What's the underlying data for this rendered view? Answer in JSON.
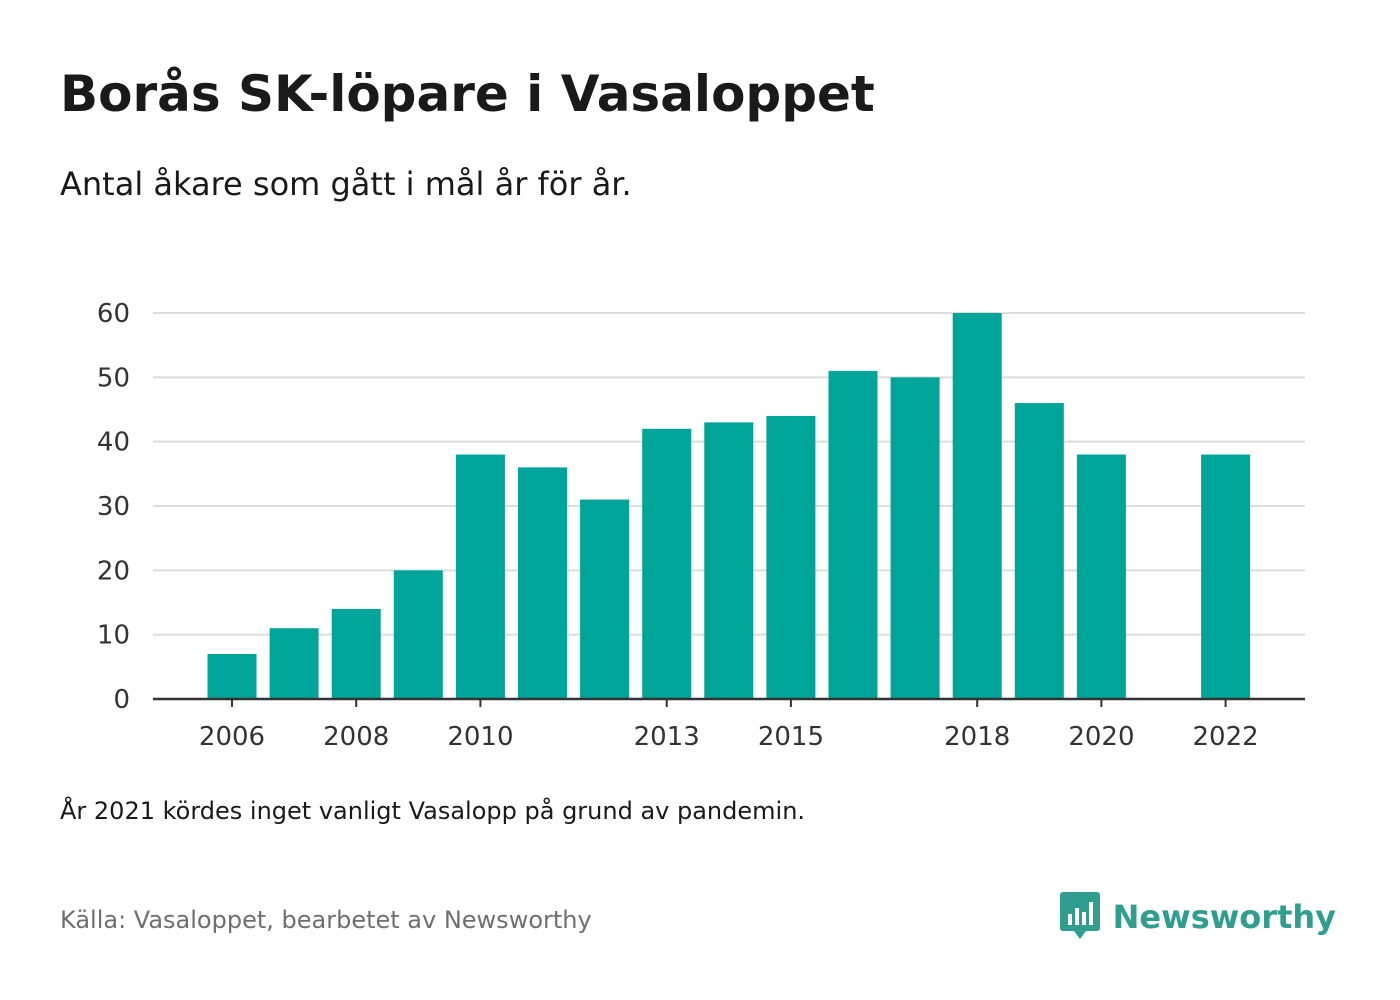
{
  "header": {
    "title": "Borås SK-löpare i Vasaloppet",
    "subtitle": "Antal åkare som gått i mål år för år."
  },
  "footer": {
    "note": "År 2021 kördes inget vanligt Vasalopp på grund av pandemin.",
    "source": "Källa: Vasaloppet, bearbetet av Newsworthy",
    "brand": "Newsworthy",
    "brand_icon": "bar-chart-speech-bubble-icon"
  },
  "colors": {
    "bar": "#00a59a",
    "grid": "#dddddd",
    "axis": "#333333",
    "brand": "#2f9e8f"
  },
  "chart_data": {
    "type": "bar",
    "x": [
      2006,
      2007,
      2008,
      2009,
      2010,
      2011,
      2012,
      2013,
      2014,
      2015,
      2016,
      2017,
      2018,
      2019,
      2020,
      2021,
      2022
    ],
    "values": [
      7,
      11,
      14,
      20,
      38,
      36,
      31,
      42,
      43,
      44,
      51,
      50,
      60,
      46,
      38,
      null,
      38
    ],
    "x_tick_labels": [
      "2006",
      "2008",
      "2010",
      "2013",
      "2015",
      "2018",
      "2020",
      "2022"
    ],
    "y_ticks": [
      0,
      10,
      20,
      30,
      40,
      50,
      60
    ],
    "ylim": [
      0,
      60
    ],
    "grid": true,
    "title": "Borås SK-löpare i Vasaloppet",
    "xlabel": "",
    "ylabel": ""
  }
}
